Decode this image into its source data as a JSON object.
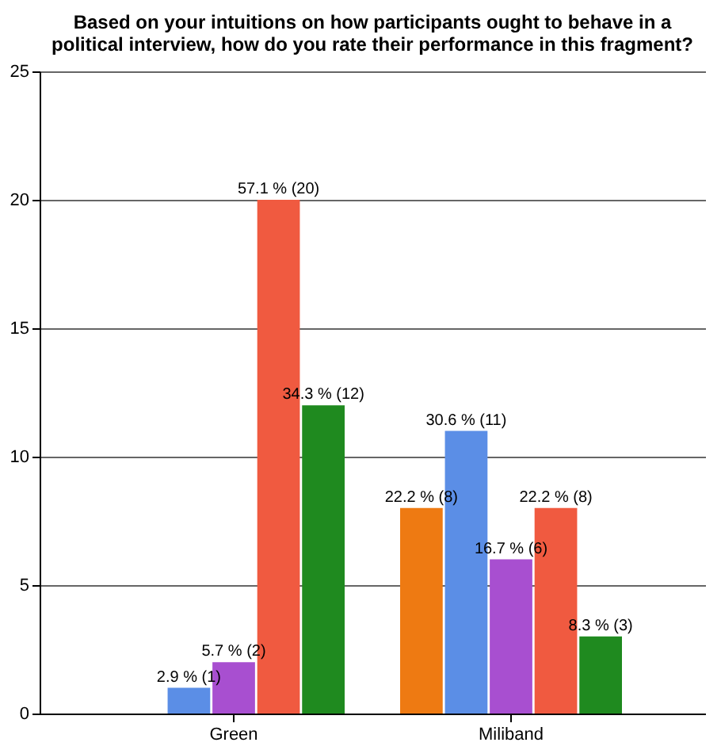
{
  "chart_data": {
    "type": "bar",
    "title": "Based on your intuitions on how participants ought to behave in a political interview, how do you rate their performance in this fragment?",
    "categories": [
      "Green",
      "Miliband"
    ],
    "series": [
      {
        "color": "#ee7a12",
        "values": [
          0,
          8
        ],
        "value_labels": [
          null,
          "22.2 % (8)"
        ]
      },
      {
        "color": "#5b8ee6",
        "values": [
          1,
          11
        ],
        "value_labels": [
          "2.9 % (1)",
          "30.6 % (11)"
        ]
      },
      {
        "color": "#a84fd0",
        "values": [
          2,
          6
        ],
        "value_labels": [
          "5.7 % (2)",
          "16.7 % (6)"
        ]
      },
      {
        "color": "#f05a40",
        "values": [
          20,
          8
        ],
        "value_labels": [
          "57.1 % (20)",
          "22.2 % (8)"
        ]
      },
      {
        "color": "#1f8a1f",
        "values": [
          12,
          3
        ],
        "value_labels": [
          "34.3 % (12)",
          "8.3 % (3)"
        ]
      }
    ],
    "ylim": [
      0,
      25
    ],
    "yticks": [
      0,
      5,
      10,
      15,
      20,
      25
    ],
    "grid": "y",
    "legend": false
  }
}
